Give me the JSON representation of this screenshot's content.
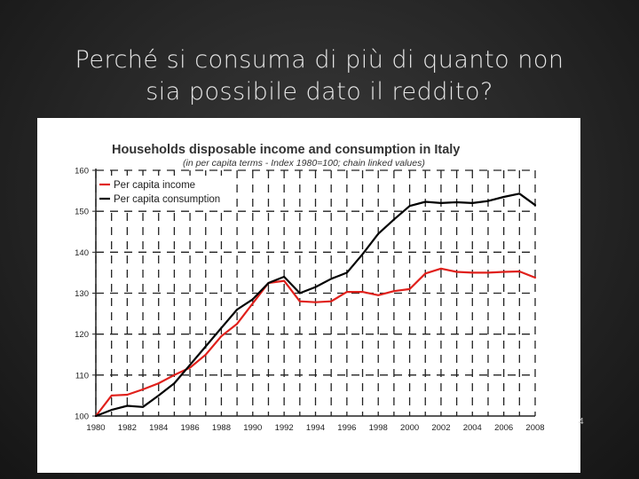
{
  "slide": {
    "title_line1": "Perché si consuma di più di quanto non",
    "title_line2": "sia possibile dato il reddito?",
    "page_number": "4"
  },
  "chart_data": {
    "type": "line",
    "title": "Households disposable income and consumption in Italy",
    "subtitle": "(in per capita terms - Index 1980=100; chain linked values)",
    "xlabel": "",
    "ylabel": "",
    "xlim": [
      1980,
      2008
    ],
    "ylim": [
      100,
      160
    ],
    "x_ticks": [
      "1980",
      "1982",
      "1984",
      "1986",
      "1988",
      "1990",
      "1992",
      "1994",
      "1996",
      "1998",
      "2000",
      "2002",
      "2004",
      "2006",
      "2008"
    ],
    "y_ticks": [
      "100",
      "110",
      "120",
      "130",
      "140",
      "150",
      "160"
    ],
    "grid": true,
    "legend_position": "top-left",
    "x": [
      1980,
      1981,
      1982,
      1983,
      1984,
      1985,
      1986,
      1987,
      1988,
      1989,
      1990,
      1991,
      1992,
      1993,
      1994,
      1995,
      1996,
      1997,
      1998,
      1999,
      2000,
      2001,
      2002,
      2003,
      2004,
      2005,
      2006,
      2007,
      2008
    ],
    "series": [
      {
        "name": "Per capita income",
        "color": "#e0201b",
        "values": [
          100,
          105,
          105.2,
          106.5,
          108,
          110,
          111.8,
          115,
          119.5,
          122.5,
          127.5,
          132.5,
          133,
          128,
          127.8,
          128,
          130.3,
          130.3,
          129.5,
          130.5,
          131,
          134.8,
          136,
          135.2,
          135,
          135,
          135.2,
          135.3,
          133.8
        ]
      },
      {
        "name": "Per capita consumption",
        "color": "#000000",
        "values": [
          100,
          101.5,
          102.5,
          102.2,
          105,
          108,
          112.5,
          117,
          121.5,
          126,
          128.5,
          132.5,
          134,
          130,
          131.5,
          133.5,
          135,
          139.5,
          144.5,
          148,
          151.3,
          152.3,
          152,
          152.2,
          152,
          152.5,
          153.5,
          154.3,
          151.5
        ]
      }
    ]
  }
}
